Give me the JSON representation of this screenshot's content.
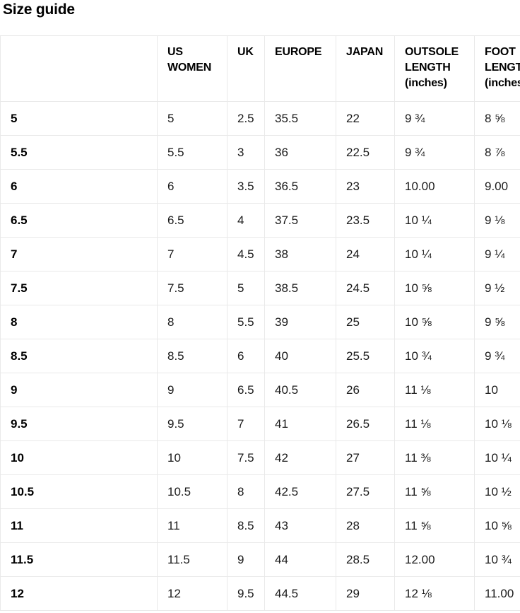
{
  "page_title": "Size guide",
  "table": {
    "columns": [
      "",
      "US WOMEN",
      "UK",
      "EUROPE",
      "JAPAN",
      "OUTSOLE LENGTH (inches)",
      "FOOT LENGTH (inches)"
    ],
    "rows": [
      [
        "5",
        "5",
        "2.5",
        "35.5",
        "22",
        "9 ¾",
        "8 ⅝"
      ],
      [
        "5.5",
        "5.5",
        "3",
        "36",
        "22.5",
        "9 ¾",
        "8 ⅞"
      ],
      [
        "6",
        "6",
        "3.5",
        "36.5",
        "23",
        "10.00",
        "9.00"
      ],
      [
        "6.5",
        "6.5",
        "4",
        "37.5",
        "23.5",
        "10 ¼",
        "9 ⅛"
      ],
      [
        "7",
        "7",
        "4.5",
        "38",
        "24",
        "10 ¼",
        "9 ¼"
      ],
      [
        "7.5",
        "7.5",
        "5",
        "38.5",
        "24.5",
        "10 ⅝",
        "9 ½"
      ],
      [
        "8",
        "8",
        "5.5",
        "39",
        "25",
        "10 ⅝",
        "9 ⅝"
      ],
      [
        "8.5",
        "8.5",
        "6",
        "40",
        "25.5",
        "10 ¾",
        "9 ¾"
      ],
      [
        "9",
        "9",
        "6.5",
        "40.5",
        "26",
        "11 ⅛",
        "10"
      ],
      [
        "9.5",
        "9.5",
        "7",
        "41",
        "26.5",
        "11 ⅛",
        "10 ⅛"
      ],
      [
        "10",
        "10",
        "7.5",
        "42",
        "27",
        "11 ⅜",
        "10 ¼"
      ],
      [
        "10.5",
        "10.5",
        "8",
        "42.5",
        "27.5",
        "11 ⅝",
        "10 ½"
      ],
      [
        "11",
        "11",
        "8.5",
        "43",
        "28",
        "11 ⅝",
        "10 ⅝"
      ],
      [
        "11.5",
        "11.5",
        "9",
        "44",
        "28.5",
        "12.00",
        "10 ¾"
      ],
      [
        "12",
        "12",
        "9.5",
        "44.5",
        "29",
        "12 ⅛",
        "11.00"
      ]
    ]
  }
}
